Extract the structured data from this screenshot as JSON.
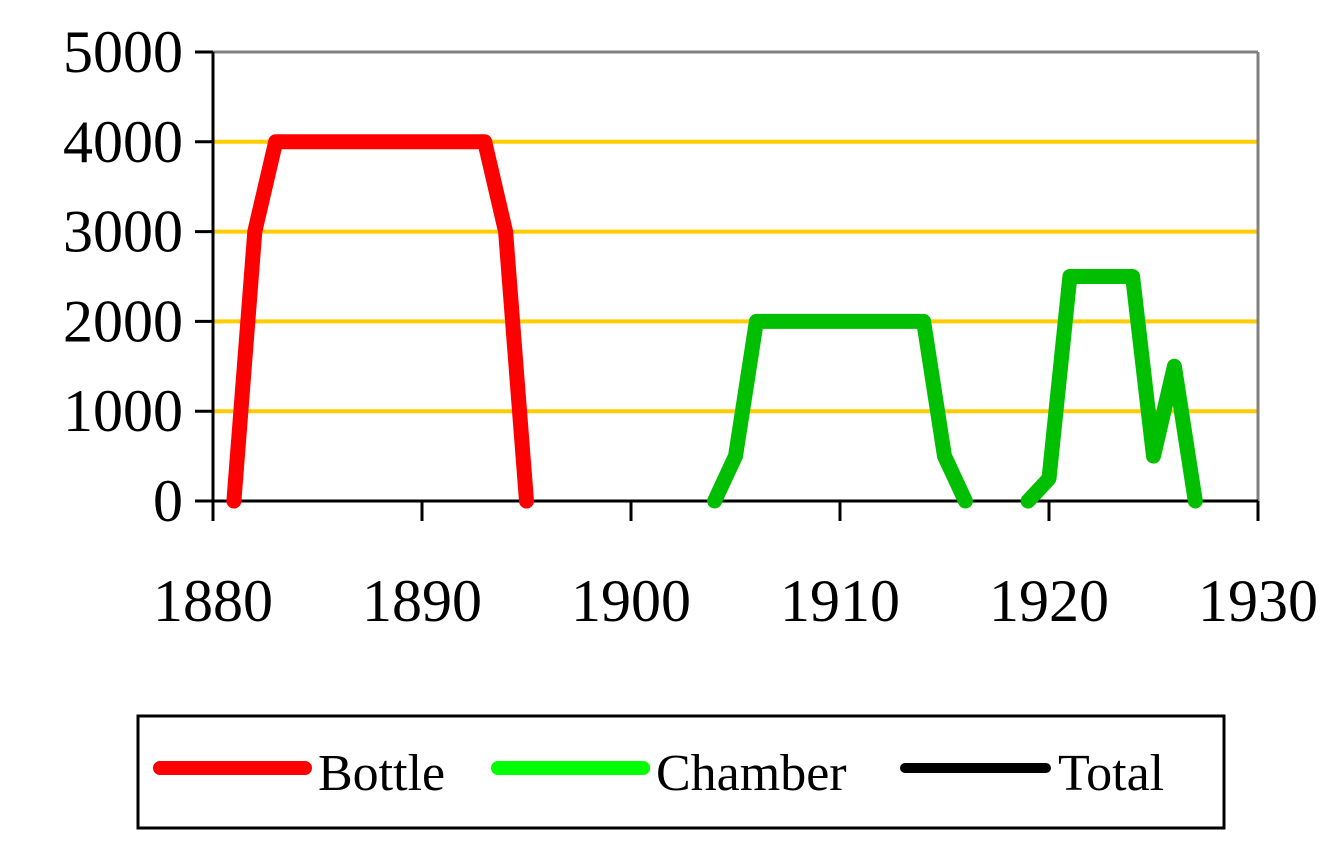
{
  "colors": {
    "background": "#ffffff",
    "gridline": "#ffcc00",
    "axis": "#000000",
    "border": "#808080",
    "bottle": "#ff0000",
    "chamber": "#00bf00",
    "chamber_legend": "#00ff00",
    "total": "#000000"
  },
  "chart_data": {
    "type": "line",
    "title": "",
    "xlabel": "",
    "ylabel": "",
    "xlim": [
      1880,
      1930
    ],
    "ylim": [
      0,
      5000
    ],
    "x_ticks": [
      1880,
      1890,
      1900,
      1910,
      1920,
      1930
    ],
    "y_ticks": [
      0,
      1000,
      2000,
      3000,
      4000,
      5000
    ],
    "x_tick_labels": [
      "1880",
      "1890",
      "1900",
      "1910",
      "1920",
      "1930"
    ],
    "y_tick_labels": [
      "0",
      "1000",
      "2000",
      "3000",
      "4000",
      "5000"
    ],
    "grid": "horizontal",
    "legend_position": "bottom",
    "series": [
      {
        "name": "Bottle",
        "color": "#ff0000",
        "points": [
          [
            1881,
            0
          ],
          [
            1882,
            3000
          ],
          [
            1883,
            4000
          ],
          [
            1893,
            4000
          ],
          [
            1894,
            3000
          ],
          [
            1895,
            0
          ]
        ]
      },
      {
        "name": "Chamber",
        "color": "#00bf00",
        "points": [
          [
            1904,
            0
          ],
          [
            1905,
            500
          ],
          [
            1906,
            2000
          ],
          [
            1914,
            2000
          ],
          [
            1915,
            500
          ],
          [
            1916,
            0
          ]
        ],
        "points2": [
          [
            1919,
            0
          ],
          [
            1920,
            250
          ],
          [
            1921,
            2500
          ],
          [
            1924,
            2500
          ],
          [
            1925,
            500
          ],
          [
            1926,
            1500
          ],
          [
            1927,
            0
          ]
        ]
      },
      {
        "name": "Total",
        "color": "#000000",
        "points": []
      }
    ]
  }
}
